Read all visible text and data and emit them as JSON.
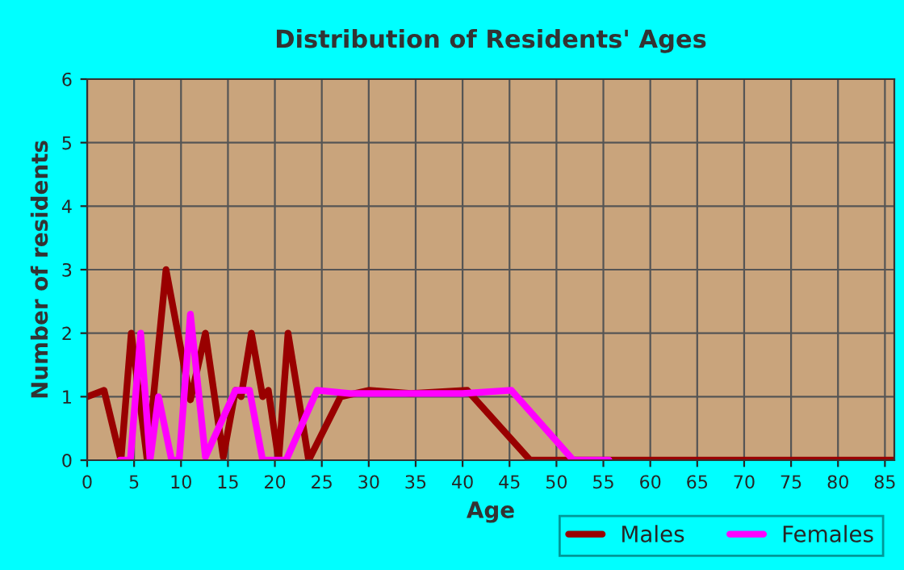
{
  "chart_data": {
    "type": "line",
    "title": "Distribution of Residents' Ages",
    "xlabel": "Age",
    "ylabel": "Number of residents",
    "xlim": [
      0,
      86
    ],
    "ylim": [
      0,
      6
    ],
    "xticks": [
      0,
      5,
      10,
      15,
      20,
      25,
      30,
      35,
      40,
      45,
      50,
      55,
      60,
      65,
      70,
      75,
      80,
      85
    ],
    "yticks": [
      0,
      1,
      2,
      3,
      4,
      5,
      6
    ],
    "grid": true,
    "legend": "bottom",
    "line_style": "solid",
    "marker": "none",
    "series": [
      {
        "name": "Males",
        "color": "#990000",
        "x": [
          0,
          1.8,
          3.6,
          4.7,
          6.4,
          8.4,
          11,
          12.6,
          14.5,
          15.8,
          16.4,
          17.5,
          18.7,
          19.3,
          20.4,
          21.4,
          23.6,
          27,
          30,
          34.5,
          40.5,
          47.2,
          86
        ],
        "values": [
          1,
          1.1,
          0,
          2,
          0,
          3,
          0.95,
          2,
          0.05,
          1.1,
          1,
          2,
          1,
          1.1,
          0,
          2,
          0,
          1,
          1.1,
          1.05,
          1.1,
          0,
          0
        ]
      },
      {
        "name": "Females",
        "color": "#ff00ff",
        "x": [
          3.5,
          4.6,
          5.7,
          6.7,
          7.6,
          9,
          9.8,
          11,
          12.6,
          15.8,
          17.3,
          18.7,
          21.2,
          24.5,
          28,
          40,
          45.2,
          51.8,
          55.6
        ],
        "values": [
          0,
          0,
          2,
          0,
          1,
          0,
          0,
          2.3,
          0.05,
          1.1,
          1.1,
          0,
          0,
          1.1,
          1.05,
          1.05,
          1.1,
          0,
          0
        ]
      }
    ]
  }
}
